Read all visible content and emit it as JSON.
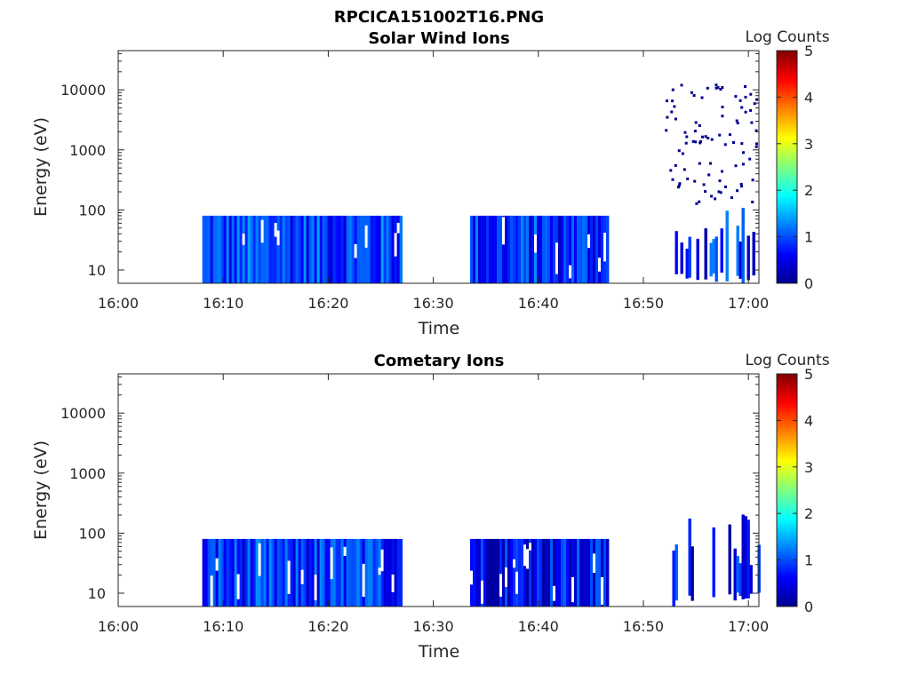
{
  "figure_title": "RPCICA151002T16.PNG",
  "chart_data": [
    {
      "type": "heatmap",
      "title": "Solar Wind Ions",
      "xlabel": "Time",
      "ylabel": "Energy (eV)",
      "colorbar_label": "Log Counts",
      "colorbar_ticks": [
        "0",
        "1",
        "2",
        "3",
        "4",
        "5"
      ],
      "clim": [
        0,
        5
      ],
      "colormap": "jet",
      "x_ticks": [
        "16:00",
        "16:10",
        "16:20",
        "16:30",
        "16:40",
        "16:50",
        "17:00"
      ],
      "xlim": [
        "16:00",
        "17:01"
      ],
      "y_ticks": [
        "10",
        "100",
        "1000",
        "10000"
      ],
      "y_scale": "log",
      "ylim": [
        6,
        45000
      ],
      "data_blocks": [
        {
          "start": "16:08",
          "end": "16:27",
          "emin": 6,
          "emax": 80,
          "level": 0.8
        },
        {
          "start": "16:33.5",
          "end": "16:46.5",
          "emin": 6,
          "emax": 80,
          "level": 0.7
        },
        {
          "start": "16:52.5",
          "end": "17:01",
          "emin": 6,
          "emax": 120,
          "level": 0.6,
          "sparse": true
        },
        {
          "start": "16:52",
          "end": "17:01",
          "emin": 120,
          "emax": 13000,
          "level": 0.3,
          "scatter": true
        }
      ]
    },
    {
      "type": "heatmap",
      "title": "Cometary Ions",
      "xlabel": "Time",
      "ylabel": "Energy (eV)",
      "colorbar_label": "Log Counts",
      "colorbar_ticks": [
        "0",
        "1",
        "2",
        "3",
        "4",
        "5"
      ],
      "clim": [
        0,
        5
      ],
      "colormap": "jet",
      "x_ticks": [
        "16:00",
        "16:10",
        "16:20",
        "16:30",
        "16:40",
        "16:50",
        "17:00"
      ],
      "xlim": [
        "16:00",
        "17:01"
      ],
      "y_ticks": [
        "10",
        "100",
        "1000",
        "10000"
      ],
      "y_scale": "log",
      "ylim": [
        6,
        45000
      ],
      "data_blocks": [
        {
          "start": "16:08",
          "end": "16:27",
          "emin": 6,
          "emax": 80,
          "level": 0.7
        },
        {
          "start": "16:33.5",
          "end": "16:46.5",
          "emin": 6,
          "emax": 80,
          "level": 0.5
        },
        {
          "start": "16:52.5",
          "end": "17:01",
          "emin": 6,
          "emax": 230,
          "level": 0.5,
          "sparse": true
        }
      ]
    }
  ]
}
